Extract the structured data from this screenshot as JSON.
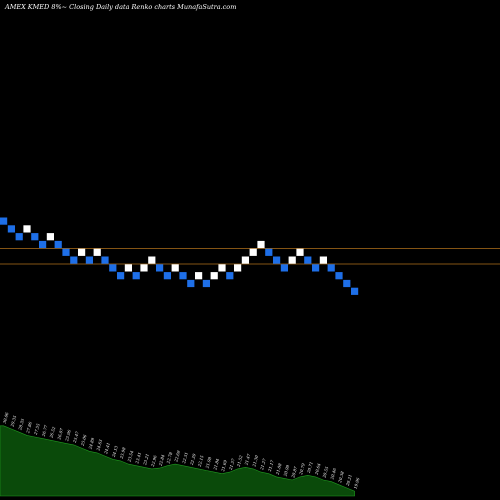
{
  "header": {
    "title": "AMEX  KMED 8%~  Closing Daily data  Renko  charts MunafaSutra.com"
  },
  "colors": {
    "background": "#000000",
    "brick_up": "#ffffff",
    "brick_down": "#1e6fe8",
    "reference_line": "#b0701a",
    "volume_area": "#0a4a0a",
    "volume_outline": "#1f9a1f",
    "text": "#ffffff"
  },
  "chart_data": {
    "type": "renko",
    "grid": false,
    "bricks": [
      {
        "i": 0,
        "level": 0,
        "dir": "down"
      },
      {
        "i": 1,
        "level": -1,
        "dir": "down"
      },
      {
        "i": 2,
        "level": -2,
        "dir": "down"
      },
      {
        "i": 3,
        "level": -1,
        "dir": "up"
      },
      {
        "i": 4,
        "level": -2,
        "dir": "down"
      },
      {
        "i": 5,
        "level": -3,
        "dir": "down"
      },
      {
        "i": 6,
        "level": -2,
        "dir": "up"
      },
      {
        "i": 7,
        "level": -3,
        "dir": "down"
      },
      {
        "i": 8,
        "level": -4,
        "dir": "down"
      },
      {
        "i": 9,
        "level": -5,
        "dir": "down"
      },
      {
        "i": 10,
        "level": -4,
        "dir": "up"
      },
      {
        "i": 11,
        "level": -5,
        "dir": "down"
      },
      {
        "i": 12,
        "level": -4,
        "dir": "up"
      },
      {
        "i": 13,
        "level": -5,
        "dir": "down"
      },
      {
        "i": 14,
        "level": -6,
        "dir": "down"
      },
      {
        "i": 15,
        "level": -7,
        "dir": "down"
      },
      {
        "i": 16,
        "level": -6,
        "dir": "up"
      },
      {
        "i": 17,
        "level": -7,
        "dir": "down"
      },
      {
        "i": 18,
        "level": -6,
        "dir": "up"
      },
      {
        "i": 19,
        "level": -5,
        "dir": "up"
      },
      {
        "i": 20,
        "level": -6,
        "dir": "down"
      },
      {
        "i": 21,
        "level": -7,
        "dir": "down"
      },
      {
        "i": 22,
        "level": -6,
        "dir": "up"
      },
      {
        "i": 23,
        "level": -7,
        "dir": "down"
      },
      {
        "i": 24,
        "level": -8,
        "dir": "down"
      },
      {
        "i": 25,
        "level": -7,
        "dir": "up"
      },
      {
        "i": 26,
        "level": -8,
        "dir": "down"
      },
      {
        "i": 27,
        "level": -7,
        "dir": "up"
      },
      {
        "i": 28,
        "level": -6,
        "dir": "up"
      },
      {
        "i": 29,
        "level": -7,
        "dir": "down"
      },
      {
        "i": 30,
        "level": -6,
        "dir": "up"
      },
      {
        "i": 31,
        "level": -5,
        "dir": "up"
      },
      {
        "i": 32,
        "level": -4,
        "dir": "up"
      },
      {
        "i": 33,
        "level": -3,
        "dir": "up"
      },
      {
        "i": 34,
        "level": -4,
        "dir": "down"
      },
      {
        "i": 35,
        "level": -5,
        "dir": "down"
      },
      {
        "i": 36,
        "level": -6,
        "dir": "down"
      },
      {
        "i": 37,
        "level": -5,
        "dir": "up"
      },
      {
        "i": 38,
        "level": -4,
        "dir": "up"
      },
      {
        "i": 39,
        "level": -5,
        "dir": "down"
      },
      {
        "i": 40,
        "level": -6,
        "dir": "down"
      },
      {
        "i": 41,
        "level": -5,
        "dir": "up"
      },
      {
        "i": 42,
        "level": -6,
        "dir": "down"
      },
      {
        "i": 43,
        "level": -7,
        "dir": "down"
      },
      {
        "i": 44,
        "level": -8,
        "dir": "down"
      },
      {
        "i": 45,
        "level": -9,
        "dir": "down"
      }
    ],
    "reference_levels": [
      -3.5,
      -5.5
    ],
    "volume": [
      88,
      84,
      80,
      76,
      74,
      72,
      70,
      68,
      66,
      64,
      60,
      56,
      54,
      50,
      46,
      44,
      40,
      38,
      36,
      34,
      35,
      38,
      40,
      38,
      36,
      34,
      32,
      30,
      28,
      30,
      34,
      36,
      34,
      30,
      28,
      24,
      22,
      20,
      24,
      26,
      24,
      20,
      18,
      14,
      10,
      6
    ],
    "volume_labels": [
      "30.06",
      "29.35",
      "28.35",
      "27.86",
      "27.55",
      "26.77",
      "26.52",
      "26.07",
      "25.96",
      "25.47",
      "25.06",
      "24.89",
      "24.63",
      "24.41",
      "24.13",
      "23.98",
      "23.54",
      "23.41",
      "23.21",
      "22.96",
      "22.84",
      "22.78",
      "22.69",
      "22.51",
      "22.39",
      "22.15",
      "21.98",
      "21.84",
      "21.69",
      "21.57",
      "21.52",
      "21.47",
      "21.30",
      "21.27",
      "21.17",
      "21.08",
      "20.99",
      "20.87",
      "20.79",
      "20.71",
      "20.64",
      "20.55",
      "20.46",
      "20.38",
      "20.21",
      "19.96"
    ]
  }
}
